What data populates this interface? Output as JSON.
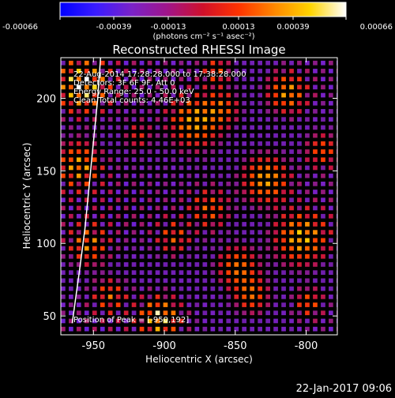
{
  "colorbar": {
    "ticks": [
      "-0.00066",
      "-0.00039",
      "-0.00013",
      "0.00013",
      "0.00039",
      "0.00066"
    ],
    "units": "(photons cm⁻² s⁻¹ asec⁻²)",
    "colors": [
      "#0000ff",
      "#3a1cff",
      "#7a22c8",
      "#a0158a",
      "#d0102a",
      "#ff3300",
      "#ff8800",
      "#ffd400",
      "#ffffff"
    ]
  },
  "annotations": {
    "time_range": "22-Aug-2014 17:28:28.000 to 17:38:28.000",
    "detectors": "Detectors: 3F 6F 9F, Att 0",
    "energy": "Energy Range: 25.0 - 50.0 keV",
    "clean": "Clean     Total counts: 4.46E+03",
    "peak": "Position of Peak = [-950,192]"
  },
  "footer_timestamp": "22-Jan-2017 09:06",
  "chart_data": {
    "type": "heatmap",
    "title": "Reconstructed RHESSI Image",
    "xlabel": "Heliocentric X (arcsec)",
    "ylabel": "Heliocentric Y (arcsec)",
    "xlim": [
      -973,
      -778
    ],
    "ylim": [
      37,
      228
    ],
    "x_ticks": [
      -950,
      -900,
      -850,
      -800
    ],
    "y_ticks": [
      50,
      100,
      150,
      200
    ],
    "x_tick_labels": [
      "-950",
      "-900",
      "-850",
      "-800"
    ],
    "y_tick_labels": [
      "50",
      "100",
      "150",
      "200"
    ],
    "color_range": [
      -0.00066,
      0.00066
    ],
    "peak_position": [
      -950,
      192
    ],
    "limb_curve": {
      "x": [
        -945,
        -947,
        -950,
        -953,
        -956,
        -960,
        -965
      ],
      "y": [
        228,
        200,
        170,
        140,
        110,
        80,
        45
      ]
    }
  }
}
